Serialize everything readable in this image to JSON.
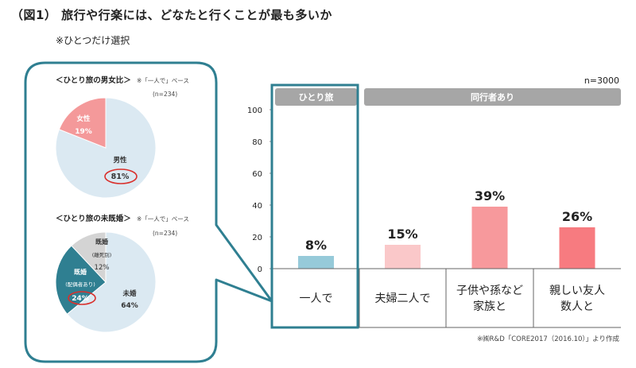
{
  "title": "（図1） 旅行や行楽には、どなたと行くことが最も多いか",
  "subtitle": "※ひとつだけ選択",
  "colors": {
    "teal": "#2f7f91",
    "pie_light": "#dbe9f2",
    "pie_pink": "#f4999a",
    "pie_gray": "#d4d4d4",
    "group_header": "#a6a6a6",
    "red_circle": "#d9302c"
  },
  "chart_data": [
    {
      "type": "pie",
      "title": "＜ひとり旅の男女比＞",
      "base_note": "※「一人で」ベース",
      "n_label": "(n=234)",
      "slices": [
        {
          "label": "男性",
          "value": 81,
          "value_label": "81%"
        },
        {
          "label": "女性",
          "value": 19,
          "value_label": "19%"
        }
      ]
    },
    {
      "type": "pie",
      "title": "＜ひとり旅の未既婚＞",
      "base_note": "※「一人で」ベース",
      "n_label": "(n=234)",
      "slices": [
        {
          "label": "未婚",
          "value": 64,
          "value_label": "64%"
        },
        {
          "label": "既婚",
          "sublabel": "(配偶者あり)",
          "value": 24,
          "value_label": "24%"
        },
        {
          "label": "既婚",
          "sublabel": "(離死別)",
          "value": 12,
          "value_label": "12%"
        }
      ]
    },
    {
      "type": "bar",
      "n_label": "n=3000",
      "groups": [
        "ひとり旅",
        "同行者あり"
      ],
      "categories": [
        "一人で",
        "夫婦二人で",
        "子供や孫など\n家族と",
        "親しい友人\n数人と"
      ],
      "values": [
        8,
        15,
        39,
        26
      ],
      "value_labels": [
        "8%",
        "15%",
        "39%",
        "26%"
      ],
      "bar_colors": [
        "#96cad9",
        "#fac8c9",
        "#f7999c",
        "#f77b80"
      ],
      "ylim": [
        0,
        100
      ],
      "yticks": [
        0,
        20,
        40,
        60,
        80,
        100
      ],
      "source": "※㈱R&D「CORE2017（2016.10）」より作成"
    }
  ]
}
